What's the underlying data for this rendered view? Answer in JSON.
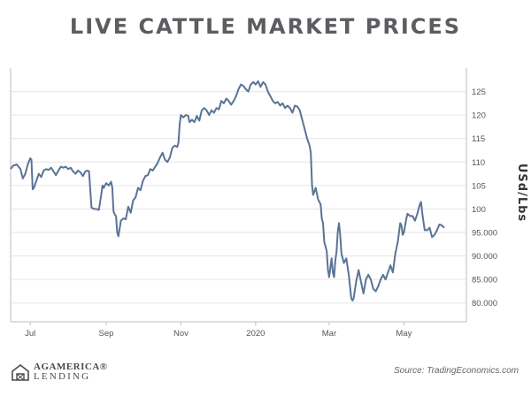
{
  "brand": {
    "line1": "AGAMERICA®",
    "line2": "LENDING"
  },
  "source": "Source: TradingEconomics.com",
  "chart_data": {
    "type": "line",
    "title": "LIVE CATTLE MARKET PRICES",
    "ylabel": "USd/Lbs",
    "ylim": [
      76,
      130
    ],
    "y_ticks": [
      {
        "v": 80,
        "label": "80.000"
      },
      {
        "v": 85,
        "label": "85.000"
      },
      {
        "v": 90,
        "label": "90.000"
      },
      {
        "v": 95,
        "label": "95.000"
      },
      {
        "v": 100,
        "label": "100"
      },
      {
        "v": 105,
        "label": "105"
      },
      {
        "v": 110,
        "label": "110"
      },
      {
        "v": 115,
        "label": "115"
      },
      {
        "v": 120,
        "label": "120"
      },
      {
        "v": 125,
        "label": "125"
      }
    ],
    "x_ticks": [
      {
        "t": 8,
        "label": "Jul"
      },
      {
        "t": 70,
        "label": "Sep"
      },
      {
        "t": 131,
        "label": "Nov"
      },
      {
        "t": 192,
        "label": "2020"
      },
      {
        "t": 252,
        "label": "Mar"
      },
      {
        "t": 313,
        "label": "May"
      }
    ],
    "xlim": [
      -8,
      364
    ],
    "grid": {
      "horizontal": true,
      "vertical": false
    },
    "series": [
      {
        "name": "",
        "color": "#5a7395",
        "points": [
          [
            -8,
            108.5
          ],
          [
            -6,
            109.2
          ],
          [
            -3,
            109.5
          ],
          [
            0,
            108.5
          ],
          [
            2,
            106.5
          ],
          [
            4,
            107.5
          ],
          [
            6,
            109.5
          ],
          [
            8,
            110.8
          ],
          [
            9,
            110.5
          ],
          [
            10,
            104.2
          ],
          [
            11,
            104.5
          ],
          [
            13,
            106
          ],
          [
            15,
            107.5
          ],
          [
            17,
            106.8
          ],
          [
            19,
            108.2
          ],
          [
            21,
            108.5
          ],
          [
            23,
            108.3
          ],
          [
            25,
            108.8
          ],
          [
            27,
            108
          ],
          [
            29,
            107.2
          ],
          [
            31,
            108.2
          ],
          [
            33,
            109
          ],
          [
            35,
            108.8
          ],
          [
            37,
            109
          ],
          [
            39,
            108.5
          ],
          [
            41,
            108.8
          ],
          [
            43,
            108
          ],
          [
            45,
            107.5
          ],
          [
            47,
            108.2
          ],
          [
            49,
            107.8
          ],
          [
            51,
            107
          ],
          [
            53,
            108
          ],
          [
            55,
            108.2
          ],
          [
            56,
            108
          ],
          [
            58,
            100.3
          ],
          [
            60,
            100
          ],
          [
            62,
            100
          ],
          [
            64,
            99.8
          ],
          [
            66,
            103
          ],
          [
            67,
            105
          ],
          [
            68,
            104.5
          ],
          [
            70,
            105.5
          ],
          [
            72,
            105
          ],
          [
            74,
            105.8
          ],
          [
            75,
            104.5
          ],
          [
            76,
            99.5
          ],
          [
            77,
            98.8
          ],
          [
            78,
            98.5
          ],
          [
            79,
            95
          ],
          [
            80,
            94.2
          ],
          [
            82,
            97.5
          ],
          [
            84,
            98
          ],
          [
            86,
            97.8
          ],
          [
            88,
            100.5
          ],
          [
            90,
            99.2
          ],
          [
            92,
            101.8
          ],
          [
            94,
            102.5
          ],
          [
            96,
            104.5
          ],
          [
            98,
            104
          ],
          [
            100,
            106
          ],
          [
            102,
            107
          ],
          [
            104,
            107.2
          ],
          [
            106,
            108.5
          ],
          [
            108,
            108.2
          ],
          [
            110,
            109
          ],
          [
            112,
            109.8
          ],
          [
            114,
            111
          ],
          [
            116,
            112
          ],
          [
            118,
            110.5
          ],
          [
            120,
            110
          ],
          [
            122,
            111
          ],
          [
            124,
            113
          ],
          [
            126,
            113.5
          ],
          [
            128,
            113.2
          ],
          [
            129,
            114.2
          ],
          [
            130,
            118
          ],
          [
            131,
            120
          ],
          [
            133,
            119.5
          ],
          [
            135,
            120
          ],
          [
            137,
            119.8
          ],
          [
            138,
            118.5
          ],
          [
            140,
            119
          ],
          [
            142,
            118.5
          ],
          [
            144,
            119.8
          ],
          [
            146,
            118.8
          ],
          [
            148,
            121
          ],
          [
            150,
            121.5
          ],
          [
            152,
            121
          ],
          [
            154,
            120
          ],
          [
            156,
            121
          ],
          [
            158,
            120.5
          ],
          [
            160,
            121.5
          ],
          [
            162,
            121.2
          ],
          [
            164,
            123
          ],
          [
            166,
            122.5
          ],
          [
            168,
            123.5
          ],
          [
            170,
            123
          ],
          [
            172,
            122.2
          ],
          [
            174,
            123
          ],
          [
            176,
            124
          ],
          [
            178,
            125.5
          ],
          [
            180,
            126.5
          ],
          [
            182,
            126.2
          ],
          [
            184,
            125.5
          ],
          [
            186,
            125
          ],
          [
            188,
            126.5
          ],
          [
            190,
            127
          ],
          [
            192,
            126.5
          ],
          [
            194,
            127.2
          ],
          [
            196,
            126
          ],
          [
            198,
            127
          ],
          [
            200,
            126.5
          ],
          [
            202,
            125
          ],
          [
            204,
            124
          ],
          [
            206,
            123
          ],
          [
            208,
            122.5
          ],
          [
            210,
            122.8
          ],
          [
            212,
            122
          ],
          [
            214,
            122.5
          ],
          [
            216,
            121.5
          ],
          [
            218,
            122
          ],
          [
            220,
            121.5
          ],
          [
            222,
            120.5
          ],
          [
            224,
            122
          ],
          [
            226,
            121.8
          ],
          [
            228,
            121
          ],
          [
            230,
            119
          ],
          [
            232,
            117
          ],
          [
            234,
            115
          ],
          [
            236,
            113.5
          ],
          [
            237,
            112
          ],
          [
            238,
            105
          ],
          [
            239,
            103
          ],
          [
            241,
            104.5
          ],
          [
            243,
            102
          ],
          [
            245,
            101
          ],
          [
            246,
            98
          ],
          [
            247,
            97
          ],
          [
            248,
            93
          ],
          [
            250,
            91
          ],
          [
            251,
            87
          ],
          [
            252,
            85.5
          ],
          [
            253,
            87.5
          ],
          [
            254,
            89.5
          ],
          [
            255,
            86.5
          ],
          [
            256,
            85.5
          ],
          [
            257,
            89
          ],
          [
            258,
            91
          ],
          [
            259,
            95
          ],
          [
            260,
            97
          ],
          [
            261,
            94.5
          ],
          [
            262,
            90.5
          ],
          [
            264,
            88.5
          ],
          [
            266,
            89.5
          ],
          [
            268,
            86
          ],
          [
            270,
            81
          ],
          [
            271,
            80.5
          ],
          [
            272,
            81
          ],
          [
            274,
            84.5
          ],
          [
            276,
            87
          ],
          [
            278,
            84.5
          ],
          [
            280,
            82
          ],
          [
            282,
            85
          ],
          [
            284,
            86
          ],
          [
            286,
            85
          ],
          [
            288,
            83
          ],
          [
            290,
            82.5
          ],
          [
            292,
            83.5
          ],
          [
            294,
            85
          ],
          [
            296,
            86
          ],
          [
            298,
            85
          ],
          [
            300,
            86.5
          ],
          [
            302,
            88
          ],
          [
            304,
            86.5
          ],
          [
            306,
            90.5
          ],
          [
            308,
            93
          ],
          [
            310,
            97
          ],
          [
            311,
            96.5
          ],
          [
            312,
            94.5
          ],
          [
            313,
            95
          ],
          [
            315,
            98
          ],
          [
            316,
            99
          ],
          [
            318,
            98.5
          ],
          [
            320,
            98.5
          ],
          [
            322,
            97.5
          ],
          [
            324,
            99
          ],
          [
            326,
            101
          ],
          [
            327,
            101.5
          ],
          [
            328,
            99
          ],
          [
            330,
            95.5
          ],
          [
            332,
            95.5
          ],
          [
            334,
            96
          ],
          [
            336,
            94
          ],
          [
            338,
            94.5
          ],
          [
            340,
            95.5
          ],
          [
            342,
            96.7
          ],
          [
            344,
            96.5
          ],
          [
            346,
            96
          ]
        ]
      }
    ]
  }
}
